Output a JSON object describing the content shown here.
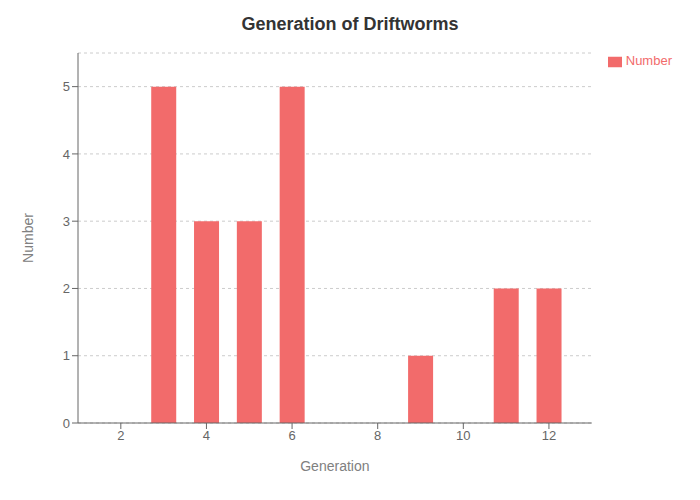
{
  "chart_data": {
    "type": "bar",
    "title": "Generation of Driftworms",
    "xlabel": "Generation",
    "ylabel": "Number",
    "x": [
      3,
      4,
      5,
      6,
      9,
      11,
      12
    ],
    "series": [
      {
        "name": "Number",
        "color": "#F26B6B",
        "values": [
          5,
          3,
          3,
          5,
          1,
          2,
          2
        ]
      }
    ],
    "xlim": [
      1,
      13
    ],
    "xticks": [
      2,
      4,
      6,
      8,
      10,
      12
    ],
    "ylim": [
      0,
      5.5
    ],
    "yticks": [
      0,
      1,
      2,
      3,
      4,
      5
    ],
    "grid": true,
    "legend": "right"
  }
}
